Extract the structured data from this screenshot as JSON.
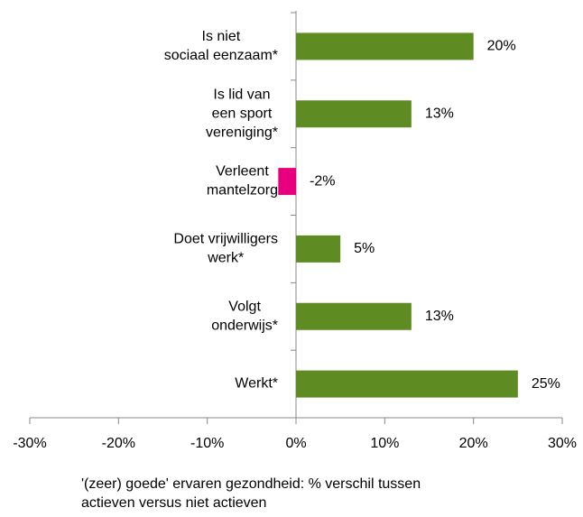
{
  "chart_data": {
    "type": "barh",
    "categories": [
      "Is niet\nsociaal eenzaam*",
      "Is lid van\neen  sport\nvereniging*",
      "Verleent\nmantelzorg",
      "Doet vrijwilligers\nwerk*",
      "Volgt\nonderwijs*",
      "Werkt*"
    ],
    "values": [
      20,
      13,
      -2,
      5,
      13,
      25
    ],
    "value_labels": [
      "20%",
      "13%",
      "-2%",
      "5%",
      "13%",
      "25%"
    ],
    "colors": [
      "#5e8b22",
      "#5e8b22",
      "#e6007e",
      "#5e8b22",
      "#5e8b22",
      "#5e8b22"
    ],
    "xlim": [
      -30,
      30
    ],
    "xticks": [
      {
        "value": -30,
        "label": "-30%"
      },
      {
        "value": -20,
        "label": "-20%"
      },
      {
        "value": -10,
        "label": "-10%"
      },
      {
        "value": 0,
        "label": "0%"
      },
      {
        "value": 10,
        "label": "10%"
      },
      {
        "value": 20,
        "label": "20%"
      },
      {
        "value": 30,
        "label": "30%"
      }
    ],
    "xlabel": [
      "'(zeer) goede' ervaren gezondheid: % verschil tussen",
      "actieven versus niet actieven"
    ]
  }
}
